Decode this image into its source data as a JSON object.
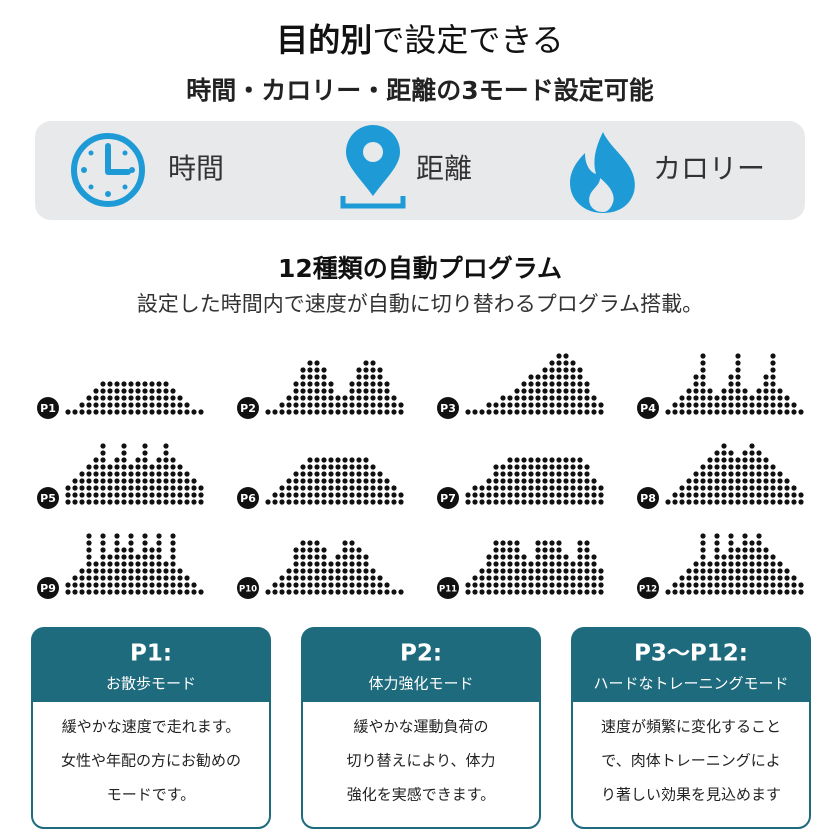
{
  "header": {
    "title_bold": "目的別",
    "title_rest": "で設定できる",
    "subtitle": "時間・カロリー・距離の3モード設定可能"
  },
  "modes": [
    {
      "label": "時間"
    },
    {
      "label": "距離"
    },
    {
      "label": "カロリー"
    }
  ],
  "programs": {
    "title": "12種類の自動プログラム",
    "subtitle": "設定した時間内で速度が自動に切り替わるプログラム搭載。",
    "items": [
      "P1",
      "P2",
      "P3",
      "P4",
      "P5",
      "P6",
      "P7",
      "P8",
      "P9",
      "P10",
      "P11",
      "P12"
    ]
  },
  "cards": [
    {
      "title": "P1:",
      "mode": "お散歩モード",
      "lines": [
        "緩やかな速度で走れます。",
        "女性や年配の方にお勧めの",
        "モードです。"
      ]
    },
    {
      "title": "P2:",
      "mode": "体力強化モード",
      "lines": [
        "緩やかな運動負荷の",
        "切り替えにより、体力",
        "強化を実感できます。"
      ]
    },
    {
      "title": "P3〜P12:",
      "mode": "ハードなトレーニングモード",
      "lines": [
        "速度が頻繁に変化すること",
        "で、肉体トレーニングによ",
        "り著しい効果を見込めます"
      ]
    }
  ]
}
